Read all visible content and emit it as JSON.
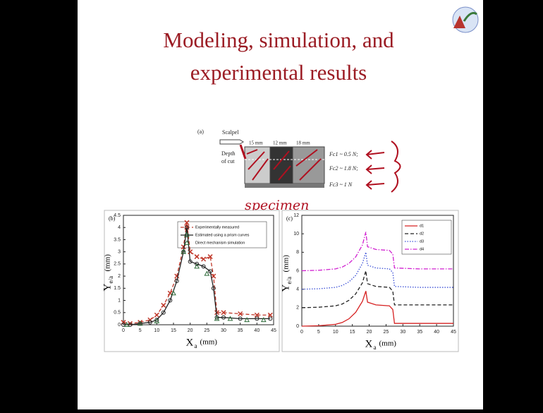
{
  "slide": {
    "title_line1": "Modeling, simulation, and",
    "title_line2": "experimental results",
    "handwriting": "specimen"
  },
  "figure_a": {
    "label": "(a)",
    "scalpel": "Scalpel",
    "seg1": "15 mm",
    "seg2": "12 mm",
    "seg3": "18 mm",
    "depth1": "Depth",
    "depth2": "of cut",
    "f1": "Fc1 ~ 0.5 N;",
    "f2": "Fc2 ~ 1.8 N;",
    "f3": "Fc3 ~ 1 N"
  },
  "chart_data": [
    {
      "type": "line",
      "panel": "(b)",
      "xlabel": "X",
      "xlabel_sub": "a",
      "xlabel_unit": "(mm)",
      "ylabel": "Y",
      "ylabel_sub": "e/a",
      "ylabel_unit": "(mm)",
      "xlim": [
        0,
        45
      ],
      "xticks": [
        0,
        5,
        10,
        15,
        20,
        25,
        30,
        35,
        40,
        45
      ],
      "ylim": [
        0,
        4.5
      ],
      "yticks": [
        0,
        0.5,
        1,
        1.5,
        2,
        2.5,
        3,
        3.5,
        4,
        4.5
      ],
      "series": [
        {
          "name": "Experimentally measured",
          "color": "#c0392b",
          "dash": "dashed",
          "marker": "x",
          "x": [
            0,
            2,
            5,
            8,
            10,
            12,
            14,
            16,
            18,
            19,
            20,
            22,
            24,
            26,
            27,
            28,
            30,
            35,
            40,
            44
          ],
          "values": [
            0.1,
            0.05,
            0.1,
            0.2,
            0.4,
            0.8,
            1.3,
            2.0,
            3.2,
            4.2,
            3.0,
            2.8,
            2.7,
            2.8,
            2.0,
            0.5,
            0.5,
            0.45,
            0.4,
            0.4
          ]
        },
        {
          "name": "Estimated using a prism curves",
          "color": "#222222",
          "dash": "solid",
          "marker": "o",
          "x": [
            0,
            2,
            5,
            8,
            10,
            12,
            14,
            16,
            18,
            19,
            20,
            22,
            24,
            26,
            27,
            28,
            30,
            35,
            40,
            44
          ],
          "values": [
            0,
            0,
            0.05,
            0.1,
            0.2,
            0.5,
            1.0,
            1.8,
            3.0,
            4.0,
            2.6,
            2.5,
            2.4,
            2.2,
            1.5,
            0.3,
            0.3,
            0.25,
            0.25,
            0.25
          ]
        },
        {
          "name": "Direct mechanism simulation",
          "color": "#2e6b3a",
          "dash": "none",
          "marker": "^",
          "x": [
            1,
            5,
            10,
            15,
            18,
            19,
            22,
            25,
            28,
            32,
            37,
            42
          ],
          "values": [
            0,
            0.05,
            0.15,
            1.3,
            3.0,
            3.7,
            2.4,
            2.1,
            0.25,
            0.25,
            0.2,
            0.2
          ]
        }
      ]
    },
    {
      "type": "line",
      "panel": "(c)",
      "xlabel": "X",
      "xlabel_sub": "a",
      "xlabel_unit": "(mm)",
      "ylabel": "Y",
      "ylabel_sub": "e/a",
      "ylabel_unit": "(mm)",
      "xlim": [
        0,
        45
      ],
      "xticks": [
        0,
        5,
        10,
        15,
        20,
        25,
        30,
        35,
        40,
        45
      ],
      "ylim": [
        0,
        12
      ],
      "yticks": [
        0,
        2,
        4,
        6,
        8,
        10,
        12
      ],
      "series": [
        {
          "name": "d1",
          "color": "#d62020",
          "dash": "solid",
          "x": [
            0,
            5,
            10,
            12,
            14,
            16,
            18,
            19,
            19.5,
            22,
            26,
            27,
            27.5,
            35,
            45
          ],
          "values": [
            0,
            0.05,
            0.2,
            0.4,
            0.8,
            1.5,
            2.7,
            3.8,
            2.6,
            2.3,
            2.2,
            1.8,
            0.3,
            0.3,
            0.3
          ]
        },
        {
          "name": "d2",
          "color": "#222222",
          "dash": "dashed",
          "x": [
            0,
            5,
            10,
            12,
            14,
            16,
            18,
            19,
            19.5,
            22,
            26,
            27,
            27.5,
            35,
            45
          ],
          "values": [
            2,
            2.05,
            2.2,
            2.4,
            2.8,
            3.5,
            4.7,
            6.0,
            4.6,
            4.3,
            4.2,
            3.8,
            2.3,
            2.3,
            2.3
          ]
        },
        {
          "name": "d3",
          "color": "#3a4fd6",
          "dash": "dotted",
          "x": [
            0,
            5,
            10,
            12,
            14,
            16,
            18,
            19,
            19.5,
            22,
            26,
            27,
            27.5,
            35,
            45
          ],
          "values": [
            4,
            4.05,
            4.2,
            4.4,
            4.8,
            5.5,
            6.8,
            8.0,
            6.6,
            6.3,
            6.2,
            5.8,
            4.3,
            4.2,
            4.2
          ]
        },
        {
          "name": "d4",
          "color": "#d020d0",
          "dash": "dashdot",
          "x": [
            0,
            5,
            10,
            12,
            14,
            16,
            18,
            19,
            19.5,
            22,
            26,
            27,
            27.5,
            35,
            45
          ],
          "values": [
            6,
            6.05,
            6.2,
            6.4,
            6.8,
            7.5,
            8.8,
            10.2,
            8.6,
            8.3,
            8.2,
            7.8,
            6.3,
            6.2,
            6.2
          ]
        }
      ]
    }
  ]
}
